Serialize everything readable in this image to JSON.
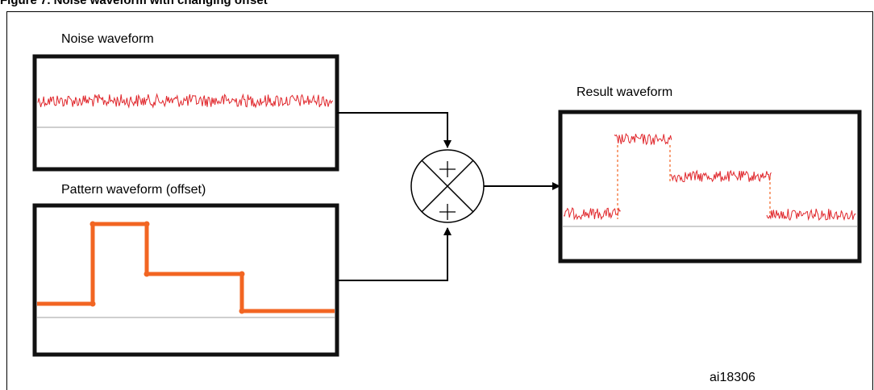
{
  "figure": {
    "caption": "Figure 7.  Noise waveform with changing offset",
    "id_tag": "ai18306"
  },
  "panels": {
    "noise": {
      "label": "Noise waveform"
    },
    "pattern": {
      "label": "Pattern waveform (offset)"
    },
    "result": {
      "label": "Result waveform"
    }
  },
  "mixer": {
    "top_sign": "+",
    "bottom_sign": "+"
  },
  "colors": {
    "noise": "#e0262b",
    "pattern": "#f26522",
    "frame": "#111111",
    "baseline": "#bfbfbf"
  }
}
